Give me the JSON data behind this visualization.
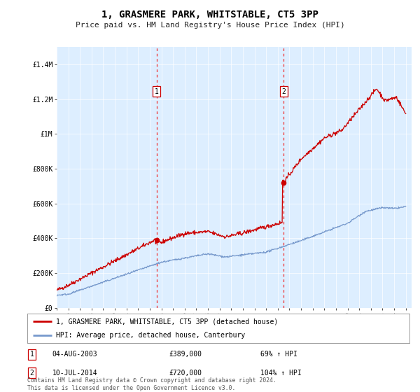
{
  "title": "1, GRASMERE PARK, WHITSTABLE, CT5 3PP",
  "subtitle": "Price paid vs. HM Land Registry's House Price Index (HPI)",
  "background_color": "#ffffff",
  "plot_bg_color": "#ddeeff",
  "ylim": [
    0,
    1500000
  ],
  "yticks": [
    0,
    200000,
    400000,
    600000,
    800000,
    1000000,
    1200000,
    1400000
  ],
  "ytick_labels": [
    "£0",
    "£200K",
    "£400K",
    "£600K",
    "£800K",
    "£1M",
    "£1.2M",
    "£1.4M"
  ],
  "purchase1_year": 2003.58,
  "purchase1_price": 389000,
  "purchase2_year": 2014.52,
  "purchase2_price": 720000,
  "legend_line1": "1, GRASMERE PARK, WHITSTABLE, CT5 3PP (detached house)",
  "legend_line2": "HPI: Average price, detached house, Canterbury",
  "note1_label": "1",
  "note1_date": "04-AUG-2003",
  "note1_price": "£389,000",
  "note1_hpi": "69% ↑ HPI",
  "note2_label": "2",
  "note2_date": "10-JUL-2014",
  "note2_price": "£720,000",
  "note2_hpi": "104% ↑ HPI",
  "footer": "Contains HM Land Registry data © Crown copyright and database right 2024.\nThis data is licensed under the Open Government Licence v3.0.",
  "line_color_property": "#cc0000",
  "line_color_hpi": "#7799cc",
  "marker_color": "#cc0000",
  "vline_color": "#ee3333",
  "annotation_box_color": "#cc0000"
}
